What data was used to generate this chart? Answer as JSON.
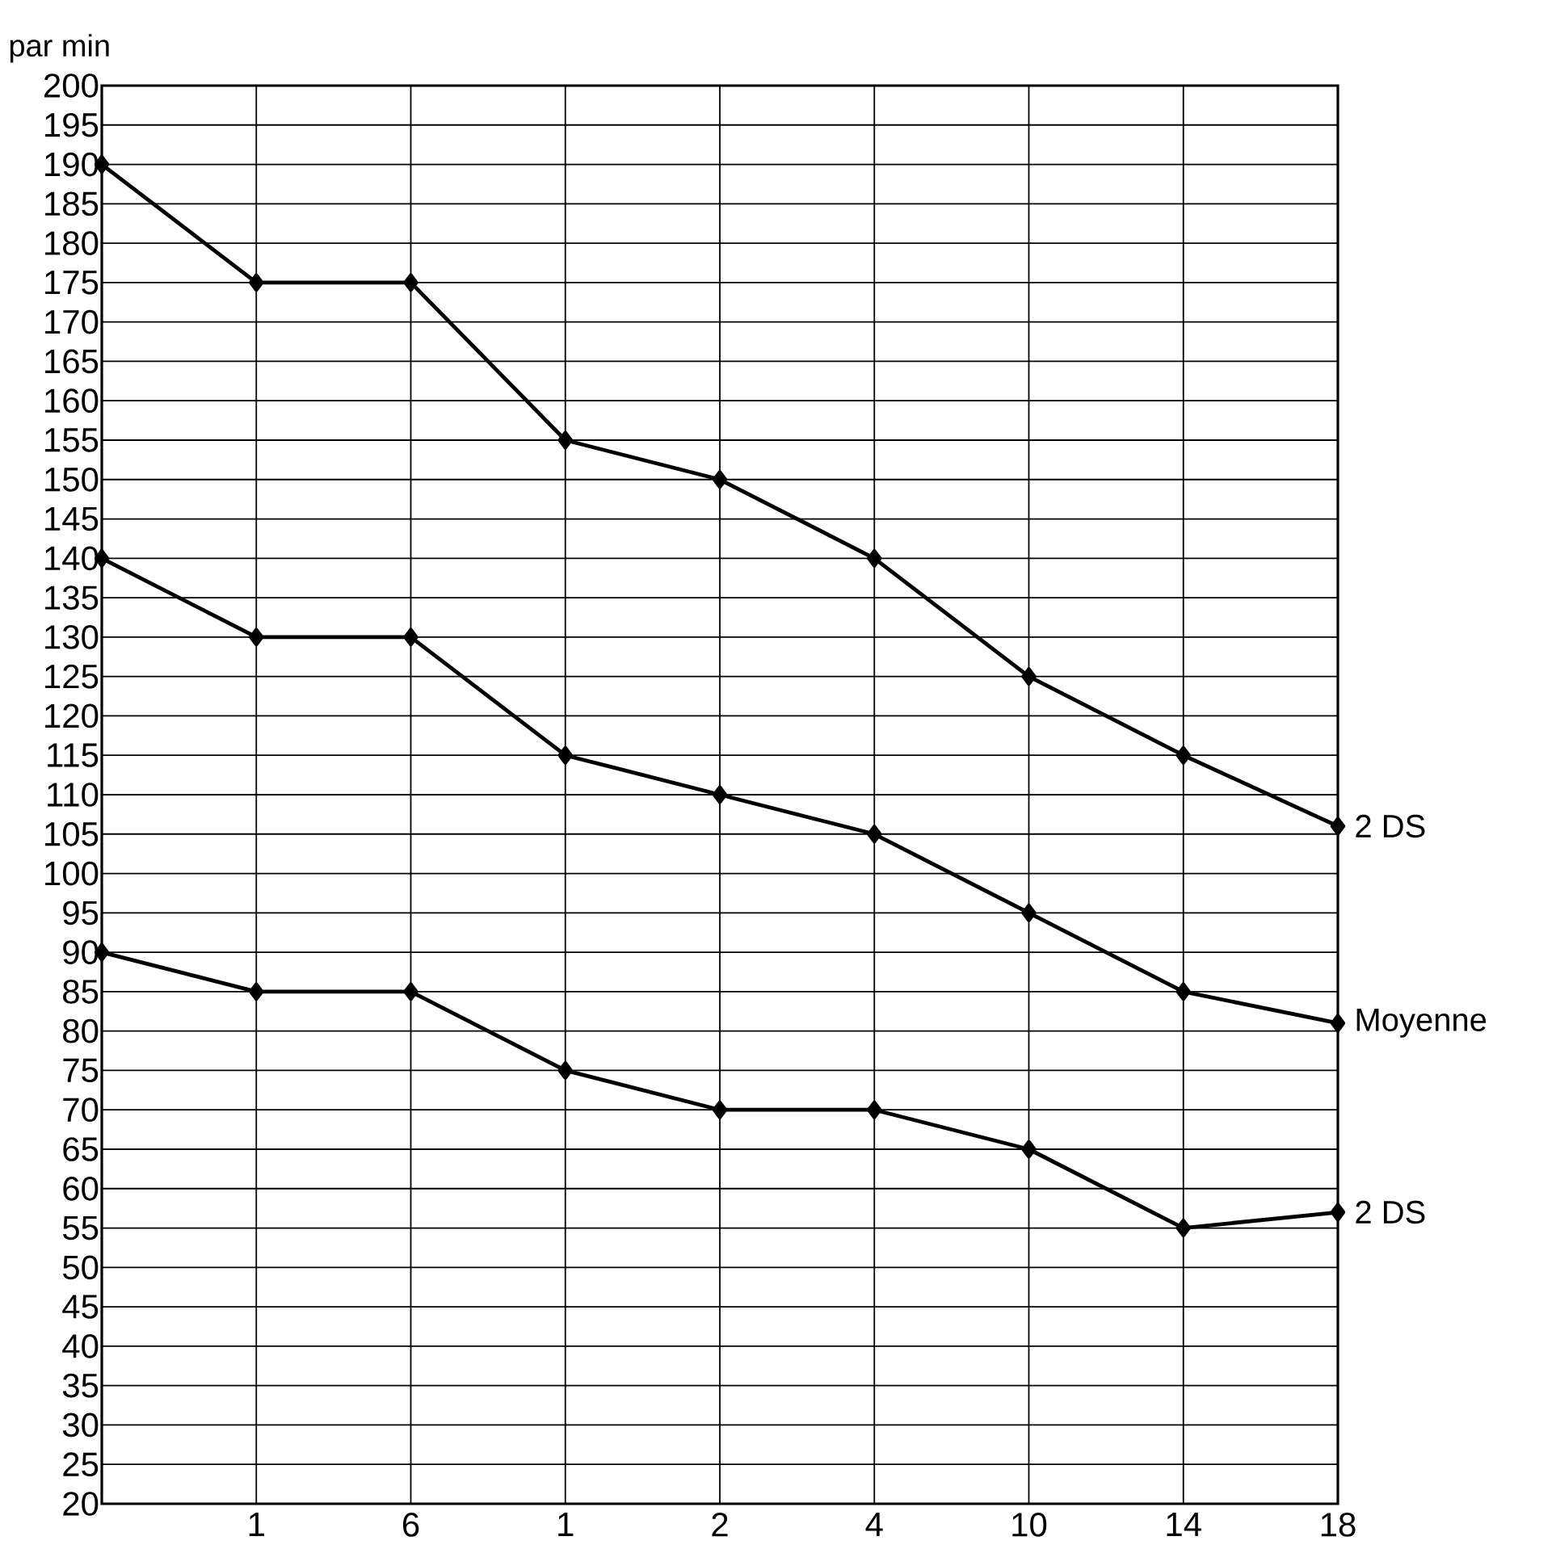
{
  "chart_data": {
    "type": "line",
    "ylabel": "par min",
    "categories": [
      null,
      "1",
      "6",
      "1",
      "2",
      "4",
      "10",
      "14",
      "18"
    ],
    "series": [
      {
        "name": "2 DS",
        "color": "#000000",
        "values": [
          190,
          175,
          175,
          155,
          150,
          140,
          125,
          115,
          106
        ]
      },
      {
        "name": "Moyenne",
        "color": "#000000",
        "values": [
          140,
          130,
          130,
          115,
          110,
          105,
          95,
          85,
          81
        ]
      },
      {
        "name": "2 DS",
        "color": "#000000",
        "values": [
          90,
          85,
          85,
          75,
          70,
          70,
          65,
          55,
          57
        ]
      }
    ],
    "ylim": [
      20,
      200
    ],
    "yticks": [
      20,
      25,
      30,
      35,
      40,
      45,
      50,
      55,
      60,
      65,
      70,
      75,
      80,
      85,
      90,
      95,
      100,
      105,
      110,
      115,
      120,
      125,
      130,
      135,
      140,
      145,
      150,
      155,
      160,
      165,
      170,
      175,
      180,
      185,
      190,
      195,
      200
    ],
    "grid": true,
    "legend": false,
    "marker": "diamond",
    "line_style": "solid"
  }
}
